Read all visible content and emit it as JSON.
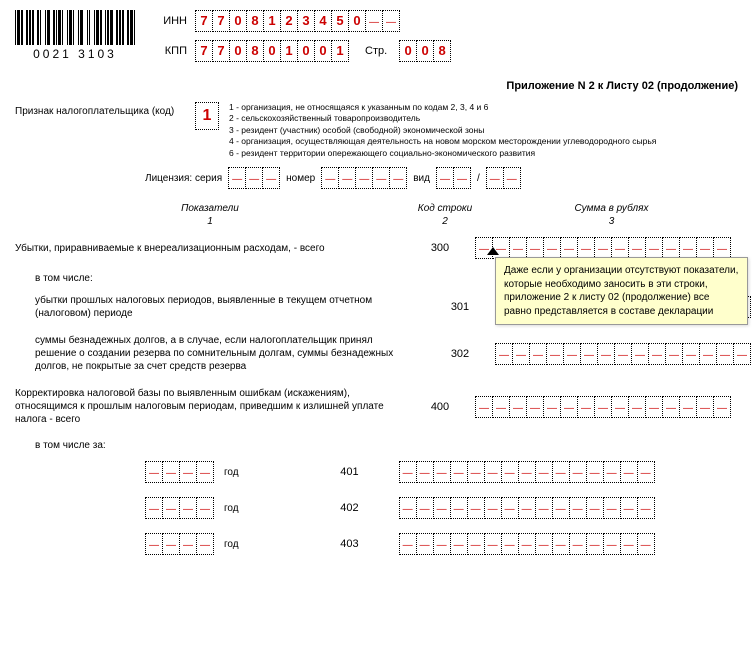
{
  "barcode_number": "0021 3103",
  "inn_label": "ИНН",
  "inn": [
    "7",
    "7",
    "0",
    "8",
    "1",
    "2",
    "3",
    "4",
    "5",
    "0",
    "-",
    "-"
  ],
  "kpp_label": "КПП",
  "kpp": [
    "7",
    "7",
    "0",
    "8",
    "0",
    "1",
    "0",
    "0",
    "1"
  ],
  "page_label": "Стр.",
  "page": [
    "0",
    "0",
    "8"
  ],
  "section_title": "Приложение N 2 к Листу 02 (продолжение)",
  "sign_label": "Признак налогоплательщика (код)",
  "sign_value": "1",
  "codes": [
    "1 - организация, не относящаяся к указанным по кодам 2, 3, 4 и 6",
    "2 - сельскохозяйственный товаропроизводитель",
    "3 - резидент (участник) особой (свободной) экономической зоны",
    "4 - организация, осуществляющая деятельность на новом морском месторождении углеводородного сырья",
    "6 - резидент территории опережающего социально-экономического развития"
  ],
  "lic_series": "Лицензия: серия",
  "lic_number": "номер",
  "lic_type": "вид",
  "col_headers": {
    "c1": "Показатели",
    "c2": "Код строки",
    "c3": "Сумма в рублях"
  },
  "col_nums": {
    "c1": "1",
    "c2": "2",
    "c3": "3"
  },
  "rows": [
    {
      "desc": "Убытки, приравниваемые к внереализационным расходам, - всего",
      "code": "300"
    },
    {
      "desc": "убытки прошлых налоговых периодов, выявленные в текущем отчетном (налоговом) периоде",
      "code": "301"
    },
    {
      "desc": "суммы безнадежных долгов, а в случае, если налогоплательщик принял решение о создании резерва по сомнительным долгам, суммы безнадежных долгов, не покрытые за счет средств резерва",
      "code": "302"
    },
    {
      "desc": "Корректировка налоговой базы по выявленным ошибкам (искажениям), относящимся к прошлым налоговым периодам, приведшим к излишней уплате налога - всего",
      "code": "400"
    }
  ],
  "including": "в том числе:",
  "including_for": "в том числе за:",
  "year_label": "год",
  "year_codes": [
    "401",
    "402",
    "403"
  ],
  "callout": "Даже если у организации отсутствуют показатели, которые необходимо заносить в эти строки, приложение 2 к листу 02 (продолжение) все равно представляется в составе декларации",
  "sum_cells": 15,
  "lic_series_cells": 3,
  "lic_number_cells": 5,
  "lic_type_cells_a": 2,
  "lic_type_cells_b": 2,
  "year_cells": 4,
  "colors": {
    "text": "#000000",
    "value": "#cc0000",
    "callout_bg": "#ffffcc"
  }
}
